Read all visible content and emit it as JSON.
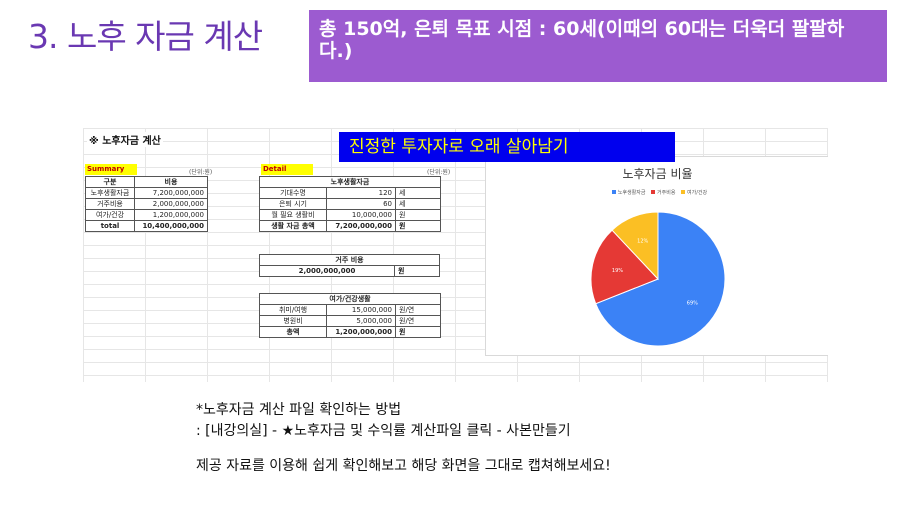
{
  "slide": {
    "title": "3. 노후 자금 계산",
    "banner": "총 150억, 은퇴 목표 시점  : 60세(이때의 60대는 더욱더 팔팔하다.)"
  },
  "sheet": {
    "title": "※ 노후자금 계산",
    "summary": {
      "header": "Summary",
      "unit": "(단위:원)",
      "columns": [
        "구분",
        "비용"
      ],
      "rows": [
        {
          "label": "노후생활자금",
          "value": "7,200,000,000"
        },
        {
          "label": "거주비용",
          "value": "2,000,000,000"
        },
        {
          "label": "여가/건강",
          "value": "1,200,000,000"
        },
        {
          "label": "total",
          "value": "10,400,000,000"
        }
      ]
    },
    "detail": {
      "header": "Detail",
      "unit": "(단위:원)",
      "living": {
        "title": "노후생활자금",
        "rows": [
          {
            "label": "기대수명",
            "value": "120",
            "unit": "세"
          },
          {
            "label": "은퇴 시기",
            "value": "60",
            "unit": "세"
          },
          {
            "label": "월 필요 생활비",
            "value": "10,000,000",
            "unit": "원"
          },
          {
            "label": "생활 자금 총액",
            "value": "7,200,000,000",
            "unit": "원"
          }
        ]
      },
      "housing": {
        "title": "거주 비용",
        "value": "2,000,000,000",
        "unit": "원"
      },
      "leisure": {
        "title": "여가/건강생활",
        "rows": [
          {
            "label": "취미/여행",
            "value": "15,000,000",
            "unit": "원/연"
          },
          {
            "label": "병원비",
            "value": "5,000,000",
            "unit": "원/연"
          },
          {
            "label": "총액",
            "value": "1,200,000,000",
            "unit": "원"
          }
        ]
      }
    },
    "overlay": "진정한 투자자로 오래 살아남기"
  },
  "chart_data": {
    "type": "pie",
    "title": "노후자금 비율",
    "labels": [
      "노후생활자금",
      "거주비용",
      "여가/건강"
    ],
    "values": [
      69,
      19,
      12
    ],
    "value_labels": [
      "69%",
      "19%",
      "12%"
    ],
    "colors": [
      "#3b82f6",
      "#e53935",
      "#fbbf24"
    ],
    "legend": "top"
  },
  "notes": {
    "line1": "*노후자금 계산 파일 확인하는 방법",
    "line2": ": [내강의실] - ★노후자금 및 수익률 계산파일 클릭 - 사본만들기",
    "line3": "제공 자료를 이용해 쉽게 확인해보고 해당 화면을 그대로 캡쳐해보세요!"
  }
}
